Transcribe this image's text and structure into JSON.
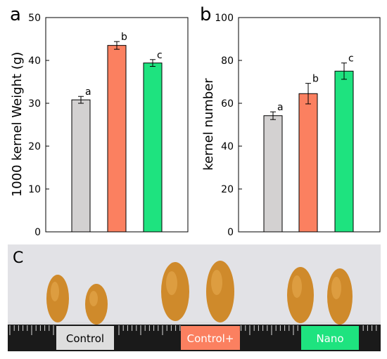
{
  "panel_labels": {
    "a": "a",
    "b": "b",
    "c": "C"
  },
  "chart_data": [
    {
      "type": "bar",
      "categories": [
        "Control",
        "Control+",
        "Nano"
      ],
      "values": [
        30.8,
        43.5,
        39.4
      ],
      "errors": [
        0.8,
        0.9,
        0.8
      ],
      "significance": [
        "a",
        "b",
        "c"
      ],
      "colors": [
        "#d3d1d1",
        "#fb8060",
        "#1ee37f"
      ],
      "ylabel": "1000 kernel Weight (g)",
      "xlabel": "",
      "ylim": [
        0,
        50
      ],
      "yticks": [
        0,
        10,
        20,
        30,
        40,
        50
      ],
      "ytick_labels": [
        "0",
        "10",
        "20",
        "30",
        "40",
        "50"
      ],
      "grid": false
    },
    {
      "type": "bar",
      "categories": [
        "Control",
        "Control+",
        "Nano"
      ],
      "values": [
        54.2,
        64.5,
        75.0
      ],
      "errors": [
        1.8,
        4.8,
        3.8
      ],
      "significance": [
        "a",
        "b",
        "c"
      ],
      "colors": [
        "#d3d1d1",
        "#fb8060",
        "#1ee37f"
      ],
      "ylabel": "kernel number",
      "xlabel": "",
      "ylim": [
        0,
        100
      ],
      "yticks": [
        0,
        20,
        40,
        60,
        80,
        100
      ],
      "ytick_labels": [
        "0",
        "20",
        "40",
        "60",
        "80",
        "100"
      ],
      "grid": false
    }
  ],
  "photo": {
    "labels": [
      {
        "text": "Control",
        "bg": "#dedede",
        "color": "#000000"
      },
      {
        "text": "Control+",
        "bg": "#fb8060",
        "color": "#ffffff"
      },
      {
        "text": "Nano",
        "bg": "#1ee37f",
        "color": "#ffffff"
      }
    ],
    "background": "#dcdcdf",
    "ruler_color": "#111111",
    "kernel_color": "#d08a2a"
  }
}
